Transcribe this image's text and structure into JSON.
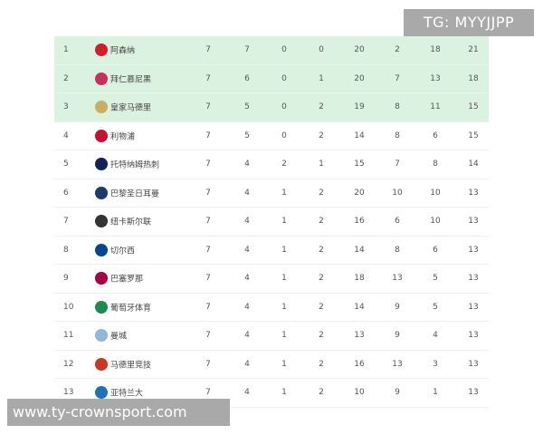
{
  "overlay_label": "TG: MYYJJPP",
  "watermark": "www.ty-crownsport.com",
  "highlight_color": "#dcf2e0",
  "rows": [
    {
      "rank": "1",
      "team": "阿森纳",
      "logo": "arsenal-crest",
      "logo_color": "#d11f2b",
      "stats": [
        "7",
        "7",
        "0",
        "0",
        "20",
        "2",
        "18",
        "21"
      ]
    },
    {
      "rank": "2",
      "team": "拜仁慕尼黑",
      "logo": "bayern-crest",
      "logo_color": "#c6305a",
      "stats": [
        "7",
        "6",
        "0",
        "1",
        "20",
        "7",
        "13",
        "18"
      ]
    },
    {
      "rank": "3",
      "team": "皇家马德里",
      "logo": "real-madrid-crest",
      "logo_color": "#c9b060",
      "stats": [
        "7",
        "5",
        "0",
        "2",
        "19",
        "8",
        "11",
        "15"
      ]
    },
    {
      "rank": "4",
      "team": "利物浦",
      "logo": "liverpool-crest",
      "logo_color": "#c8102e",
      "stats": [
        "7",
        "5",
        "0",
        "2",
        "14",
        "8",
        "6",
        "15"
      ]
    },
    {
      "rank": "5",
      "team": "托特纳姆热刺",
      "logo": "tottenham-crest",
      "logo_color": "#132257",
      "stats": [
        "7",
        "4",
        "2",
        "1",
        "15",
        "7",
        "8",
        "14"
      ]
    },
    {
      "rank": "6",
      "team": "巴黎圣日耳曼",
      "logo": "psg-crest",
      "logo_color": "#1b3a6b",
      "stats": [
        "7",
        "4",
        "1",
        "2",
        "20",
        "10",
        "10",
        "13"
      ]
    },
    {
      "rank": "7",
      "team": "纽卡斯尔联",
      "logo": "newcastle-crest",
      "logo_color": "#333333",
      "stats": [
        "7",
        "4",
        "1",
        "2",
        "16",
        "6",
        "10",
        "13"
      ]
    },
    {
      "rank": "8",
      "team": "切尔西",
      "logo": "chelsea-crest",
      "logo_color": "#034694",
      "stats": [
        "7",
        "4",
        "1",
        "2",
        "14",
        "8",
        "6",
        "13"
      ]
    },
    {
      "rank": "9",
      "team": "巴塞罗那",
      "logo": "barcelona-crest",
      "logo_color": "#a50044",
      "stats": [
        "7",
        "4",
        "1",
        "2",
        "18",
        "13",
        "5",
        "13"
      ]
    },
    {
      "rank": "10",
      "team": "葡萄牙体育",
      "logo": "sporting-crest",
      "logo_color": "#1f8a4c",
      "stats": [
        "7",
        "4",
        "1",
        "2",
        "14",
        "9",
        "5",
        "13"
      ]
    },
    {
      "rank": "11",
      "team": "曼城",
      "logo": "man-city-crest",
      "logo_color": "#8fb8de",
      "stats": [
        "7",
        "4",
        "1",
        "2",
        "13",
        "9",
        "4",
        "13"
      ]
    },
    {
      "rank": "12",
      "team": "马德里竞技",
      "logo": "atletico-crest",
      "logo_color": "#cb3524",
      "stats": [
        "7",
        "4",
        "1",
        "2",
        "16",
        "13",
        "3",
        "13"
      ]
    },
    {
      "rank": "13",
      "team": "亚特兰大",
      "logo": "atalanta-crest",
      "logo_color": "#1e71b8",
      "stats": [
        "7",
        "4",
        "1",
        "2",
        "10",
        "9",
        "1",
        "13"
      ]
    }
  ]
}
